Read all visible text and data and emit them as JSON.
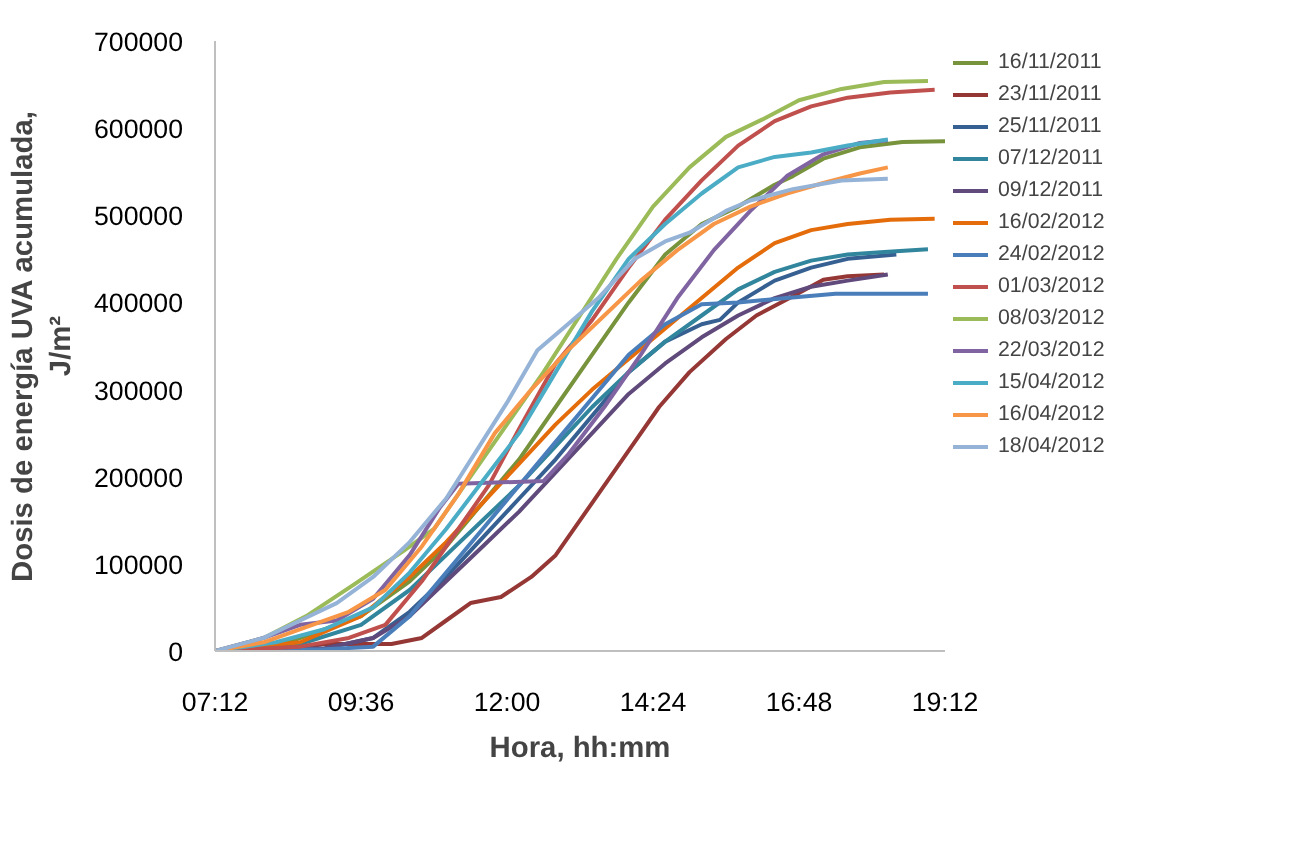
{
  "chart_data": {
    "type": "line",
    "xlabel": "Hora, hh:mm",
    "ylabel": "Dosis de energía UVA acumulada,\nJ/m²",
    "xlim": [
      7.2,
      19.2
    ],
    "xticks": [
      {
        "value": 7.2,
        "label": "07:12"
      },
      {
        "value": 9.6,
        "label": "09:36"
      },
      {
        "value": 12,
        "label": "12:00"
      },
      {
        "value": 14.4,
        "label": "14:24"
      },
      {
        "value": 16.8,
        "label": "16:48"
      },
      {
        "value": 19.2,
        "label": "19:12"
      }
    ],
    "ylim": [
      0,
      700000
    ],
    "yticks": [
      0,
      100000,
      200000,
      300000,
      400000,
      500000,
      600000,
      700000
    ],
    "grid": false,
    "legend": "right",
    "marker": "none",
    "line_style": "solid",
    "series": [
      {
        "name": "16/11/2011",
        "color": "#77933c",
        "x": [
          7.2,
          8.4,
          9.6,
          10.4,
          11.0,
          11.6,
          12.2,
          12.8,
          13.4,
          14.0,
          14.6,
          15.2,
          15.8,
          16.4,
          16.7,
          17.2,
          17.8,
          18.5,
          19.2
        ],
        "values": [
          0,
          10000,
          40000,
          80000,
          120000,
          170000,
          220000,
          280000,
          340000,
          400000,
          455000,
          490000,
          510000,
          535000,
          545000,
          565000,
          578000,
          584000,
          585000
        ]
      },
      {
        "name": "23/11/2011",
        "color": "#953735",
        "x": [
          7.2,
          8.4,
          9.0,
          10.1,
          10.6,
          11.0,
          11.4,
          11.9,
          12.4,
          12.8,
          13.4,
          14.0,
          14.5,
          15.0,
          15.6,
          16.1,
          16.7,
          17.2,
          17.6,
          18.2
        ],
        "values": [
          0,
          2000,
          8000,
          8000,
          15000,
          35000,
          55000,
          62000,
          85000,
          110000,
          170000,
          230000,
          280000,
          320000,
          358000,
          385000,
          407000,
          426000,
          430000,
          432000
        ]
      },
      {
        "name": "25/11/2011",
        "color": "#376092",
        "x": [
          7.2,
          9.0,
          9.8,
          10.4,
          11.0,
          11.6,
          12.2,
          12.8,
          13.4,
          14.0,
          14.6,
          15.2,
          15.5,
          15.8,
          16.4,
          17.0,
          17.6,
          18.4
        ],
        "values": [
          0,
          3000,
          15000,
          45000,
          85000,
          130000,
          175000,
          220000,
          270000,
          320000,
          355000,
          375000,
          380000,
          400000,
          425000,
          440000,
          450000,
          455000
        ]
      },
      {
        "name": "07/12/2011",
        "color": "#31859c",
        "x": [
          7.2,
          8.6,
          9.6,
          10.4,
          11.0,
          11.6,
          12.2,
          12.8,
          13.4,
          14.0,
          14.6,
          15.2,
          15.8,
          16.4,
          17.0,
          17.6,
          18.2,
          18.92
        ],
        "values": [
          0,
          8000,
          30000,
          70000,
          110000,
          150000,
          190000,
          235000,
          280000,
          320000,
          355000,
          385000,
          415000,
          435000,
          448000,
          455000,
          458000,
          461000
        ]
      },
      {
        "name": "09/12/2011",
        "color": "#604a7b",
        "x": [
          7.2,
          9.0,
          9.8,
          10.4,
          11.0,
          11.6,
          12.2,
          12.8,
          13.4,
          14.0,
          14.6,
          15.2,
          15.8,
          16.4,
          17.0,
          17.6,
          18.26
        ],
        "values": [
          0,
          3000,
          15000,
          40000,
          80000,
          120000,
          160000,
          205000,
          250000,
          295000,
          330000,
          360000,
          385000,
          405000,
          418000,
          425000,
          432000
        ]
      },
      {
        "name": "16/02/2012",
        "color": "#e46c0a",
        "x": [
          7.2,
          8.6,
          9.6,
          10.4,
          11.0,
          11.6,
          12.2,
          12.8,
          13.4,
          14.0,
          14.6,
          15.2,
          15.8,
          16.4,
          17.0,
          17.6,
          18.3,
          19.03
        ],
        "values": [
          0,
          10000,
          40000,
          85000,
          125000,
          170000,
          215000,
          260000,
          300000,
          335000,
          370000,
          405000,
          440000,
          468000,
          483000,
          490000,
          495000,
          496000
        ]
      },
      {
        "name": "24/02/2012",
        "color": "#4a7ebb",
        "x": [
          7.2,
          9.0,
          9.8,
          10.4,
          11.0,
          11.6,
          12.2,
          12.8,
          13.4,
          14.0,
          14.6,
          15.2,
          15.8,
          16.6,
          17.4,
          18.92
        ],
        "values": [
          0,
          2000,
          5000,
          40000,
          90000,
          140000,
          190000,
          240000,
          290000,
          340000,
          375000,
          398000,
          400000,
          405000,
          410000,
          410000
        ]
      },
      {
        "name": "01/03/2012",
        "color": "#c0504d",
        "x": [
          7.2,
          8.6,
          9.4,
          10.0,
          10.6,
          11.2,
          11.7,
          12.2,
          12.8,
          13.4,
          14.0,
          14.6,
          15.2,
          15.8,
          16.4,
          17.0,
          17.6,
          18.3,
          19.03
        ],
        "values": [
          0,
          5000,
          15000,
          30000,
          80000,
          140000,
          190000,
          255000,
          330000,
          380000,
          440000,
          495000,
          540000,
          580000,
          608000,
          625000,
          635000,
          641000,
          644000
        ]
      },
      {
        "name": "08/03/2012",
        "color": "#9bbb59",
        "x": [
          7.2,
          8.0,
          8.7,
          9.5,
          10.3,
          10.8,
          11.4,
          12.0,
          12.6,
          13.2,
          13.8,
          14.4,
          15.0,
          15.6,
          16.2,
          16.8,
          17.5,
          18.2,
          18.92
        ],
        "values": [
          0,
          15000,
          40000,
          77000,
          115000,
          140000,
          200000,
          260000,
          320000,
          385000,
          450000,
          510000,
          555000,
          590000,
          610000,
          632000,
          645000,
          653000,
          654000
        ]
      },
      {
        "name": "22/03/2012",
        "color": "#8064a2",
        "x": [
          7.2,
          8.0,
          8.6,
          9.2,
          9.8,
          10.4,
          10.9,
          11.2,
          12.6,
          13.0,
          13.6,
          14.2,
          14.8,
          15.4,
          16.0,
          16.6,
          17.2,
          17.8,
          18.26
        ],
        "values": [
          0,
          15000,
          30000,
          35000,
          60000,
          110000,
          165000,
          192000,
          195000,
          225000,
          280000,
          340000,
          405000,
          460000,
          505000,
          545000,
          570000,
          583000,
          586000
        ]
      },
      {
        "name": "15/04/2012",
        "color": "#4bacc6",
        "x": [
          7.2,
          8.2,
          9.0,
          9.8,
          10.4,
          11.0,
          11.6,
          12.2,
          12.8,
          13.4,
          14.0,
          14.6,
          15.2,
          15.8,
          16.4,
          17.0,
          17.6,
          18.26
        ],
        "values": [
          0,
          10000,
          25000,
          50000,
          90000,
          140000,
          195000,
          250000,
          320000,
          390000,
          450000,
          490000,
          525000,
          555000,
          567000,
          572000,
          580000,
          587000
        ]
      },
      {
        "name": "16/04/2012",
        "color": "#f79646",
        "x": [
          7.2,
          8.0,
          8.8,
          9.4,
          10.0,
          10.6,
          11.2,
          11.8,
          12.4,
          13.0,
          13.6,
          14.2,
          14.8,
          15.4,
          16.0,
          16.6,
          17.2,
          17.8,
          18.26
        ],
        "values": [
          0,
          10000,
          30000,
          45000,
          70000,
          120000,
          180000,
          250000,
          300000,
          345000,
          385000,
          425000,
          460000,
          490000,
          510000,
          525000,
          537000,
          548000,
          555000
        ]
      },
      {
        "name": "18/04/2012",
        "color": "#95b3d7",
        "x": [
          7.2,
          8.0,
          8.6,
          9.2,
          9.8,
          10.4,
          11.0,
          11.5,
          12.0,
          12.5,
          13.0,
          13.5,
          14.1,
          14.6,
          15.0,
          15.6,
          16.0,
          16.7,
          17.5,
          18.26
        ],
        "values": [
          0,
          15000,
          35000,
          55000,
          85000,
          125000,
          175000,
          230000,
          285000,
          345000,
          375000,
          405000,
          450000,
          470000,
          480000,
          505000,
          517000,
          530000,
          540000,
          542000
        ]
      }
    ]
  }
}
